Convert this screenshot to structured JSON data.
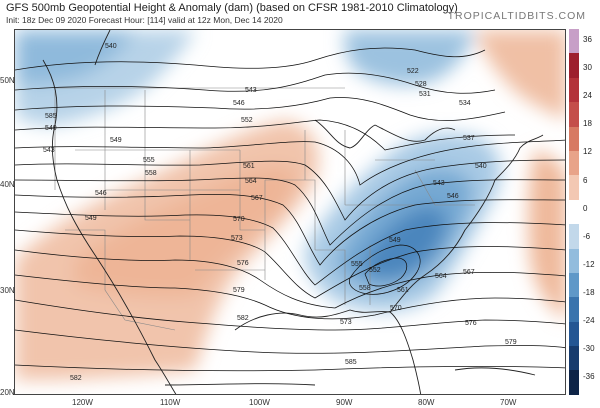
{
  "header": {
    "title": "GFS 500mb Geopotential Height & Anomaly (dam) (based on CFSR 1981-2010 Climatology)",
    "subtitle": "Init: 18z Dec 09 2020   Forecast Hour: [114]   valid at 12z Mon, Dec 14 2020",
    "brand": "TROPICALTIDBITS.COM"
  },
  "axes": {
    "lat_labels": [
      "50N",
      "40N",
      "30N",
      "20N"
    ],
    "lon_labels": [
      "120W",
      "110W",
      "100W",
      "90W",
      "80W",
      "70W"
    ]
  },
  "contour_labels": [
    "540",
    "543",
    "546",
    "549",
    "552",
    "555",
    "558",
    "561",
    "564",
    "567",
    "570",
    "573",
    "576",
    "579",
    "582",
    "585",
    "522",
    "528",
    "531",
    "534",
    "537",
    "540",
    "543",
    "546",
    "549",
    "552",
    "555",
    "558",
    "561",
    "564",
    "567",
    "570",
    "573",
    "576",
    "579",
    "582",
    "585",
    "540",
    "543",
    "546",
    "549"
  ],
  "colorbar": {
    "ticks": [
      "36",
      "30",
      "24",
      "18",
      "12",
      "6",
      "0",
      "-6",
      "-12",
      "-18",
      "-24",
      "-30",
      "-36"
    ],
    "colors": [
      "#c79fc7",
      "#9d1f2e",
      "#b3323a",
      "#c44e4a",
      "#d77a63",
      "#e8a389",
      "#f3c8b3",
      "#ffffff",
      "#c2d8ea",
      "#92bcdd",
      "#5f98c8",
      "#3a74ad",
      "#245693",
      "#173b6d",
      "#0e2447"
    ]
  },
  "chart_data": {
    "type": "map",
    "variable": "500mb Geopotential Height & Anomaly (dam)",
    "anomaly_units": "dam",
    "colorbar_range": [
      -36,
      36
    ],
    "colorbar_step": 6,
    "features": [
      {
        "name": "trough",
        "region": "southeastern US",
        "anomaly_sign": "negative"
      },
      {
        "name": "ridge",
        "region": "central US",
        "anomaly_sign": "positive"
      },
      {
        "name": "negative anomaly",
        "region": "Pacific Northwest",
        "anomaly_sign": "negative"
      },
      {
        "name": "positive anomaly",
        "region": "western Atlantic",
        "anomaly_sign": "positive"
      }
    ]
  }
}
